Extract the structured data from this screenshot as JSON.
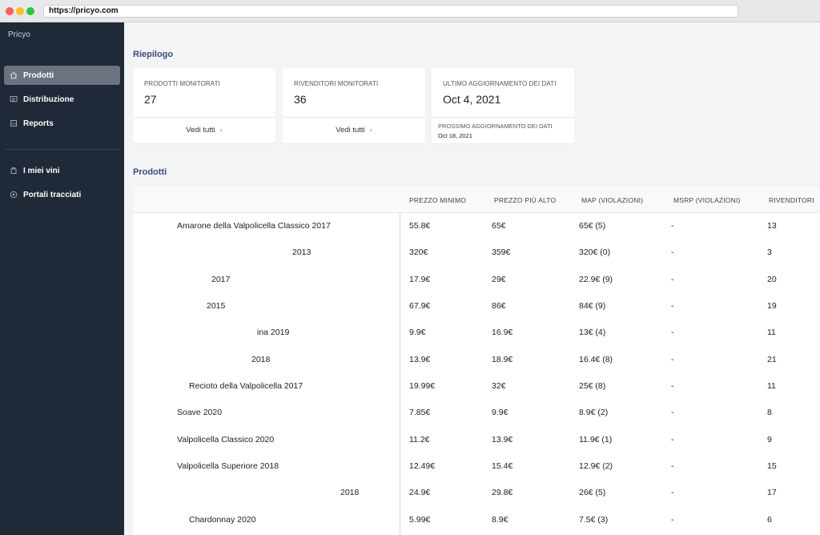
{
  "browser": {
    "url": "https://pricyo.com"
  },
  "sidebar": {
    "brand": "Pricyo",
    "items": [
      {
        "label": "Prodotti",
        "icon": "home-icon"
      },
      {
        "label": "Distribuzione",
        "icon": "distribution-icon"
      },
      {
        "label": "Reports",
        "icon": "report-icon"
      },
      {
        "label": "I miei vini",
        "icon": "wine-icon"
      },
      {
        "label": "Portali tracciati",
        "icon": "portal-icon"
      }
    ]
  },
  "summary": {
    "title": "Riepilogo",
    "cards": [
      {
        "label": "PRODOTTI MONITORATI",
        "value": "27",
        "link": "Vedi tutti"
      },
      {
        "label": "RIVENDITORI MONITORATI",
        "value": "36",
        "link": "Vedi tutti"
      },
      {
        "label": "ULTIMO AGGIORNAMENTO DEI DATI",
        "value": "Oct 4, 2021",
        "next_label": "PROSSIMO AGGIORNAMENTO DEI DATI",
        "next_value": "Oct 18, 2021"
      }
    ]
  },
  "products": {
    "title": "Prodotti",
    "columns": [
      "PREZZO MINIMO",
      "PREZZO PIÙ ALTO",
      "MAP (VIOLAZIONI)",
      "MSRP (VIOLAZIONI)",
      "RIVENDITORI"
    ],
    "rows": [
      {
        "name": "Amarone della Valpolicella Classico 2017",
        "min": "55.8€",
        "max": "65€",
        "map": "65€ (5)",
        "msrp": "-",
        "resellers": "13"
      },
      {
        "name": "2013",
        "min": "320€",
        "max": "359€",
        "map": "320€ (0)",
        "msrp": "-",
        "resellers": "3"
      },
      {
        "name": "2017",
        "min": "17.9€",
        "max": "29€",
        "map": "22.9€ (9)",
        "msrp": "-",
        "resellers": "20"
      },
      {
        "name": "2015",
        "min": "67.9€",
        "max": "86€",
        "map": "84€ (9)",
        "msrp": "-",
        "resellers": "19"
      },
      {
        "name": "ina 2019",
        "min": "9.9€",
        "max": "16.9€",
        "map": "13€ (4)",
        "msrp": "-",
        "resellers": "11"
      },
      {
        "name": "2018",
        "min": "13.9€",
        "max": "18.9€",
        "map": "16.4€ (8)",
        "msrp": "-",
        "resellers": "21"
      },
      {
        "name": "Recioto della Valpolicella 2017",
        "min": "19.99€",
        "max": "32€",
        "map": "25€ (8)",
        "msrp": "-",
        "resellers": "11"
      },
      {
        "name": "Soave 2020",
        "min": "7.85€",
        "max": "9.9€",
        "map": "8.9€ (2)",
        "msrp": "-",
        "resellers": "8"
      },
      {
        "name": "Valpolicella Classico 2020",
        "min": "11.2€",
        "max": "13.9€",
        "map": "11.9€ (1)",
        "msrp": "-",
        "resellers": "9"
      },
      {
        "name": "Valpolicella Superiore 2018",
        "min": "12.49€",
        "max": "15.4€",
        "map": "12.9€ (2)",
        "msrp": "-",
        "resellers": "15"
      },
      {
        "name": "2018",
        "min": "24.9€",
        "max": "29.8€",
        "map": "26€ (5)",
        "msrp": "-",
        "resellers": "17"
      },
      {
        "name": "Chardonnay 2020",
        "min": "5.99€",
        "max": "8.9€",
        "map": "7.5€ (3)",
        "msrp": "-",
        "resellers": "6"
      }
    ]
  }
}
